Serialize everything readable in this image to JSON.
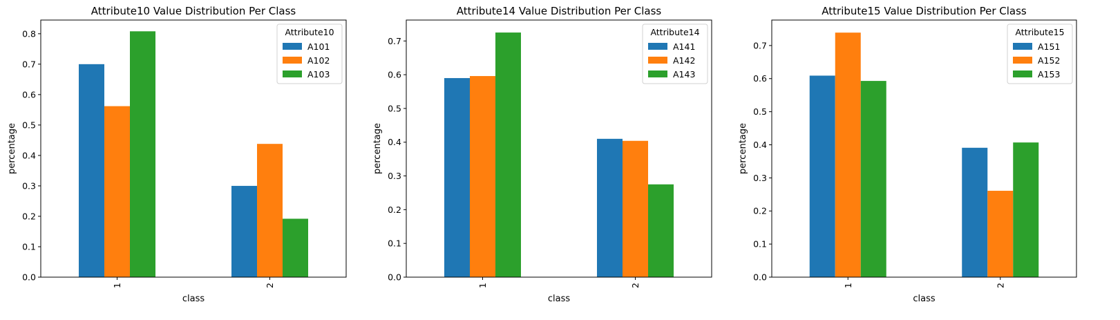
{
  "chart_data": [
    {
      "type": "bar",
      "title": "Attribute10 Value Distribution Per Class",
      "xlabel": "class",
      "ylabel": "percentage",
      "categories": [
        "1",
        "2"
      ],
      "ylim": [
        0,
        0.845
      ],
      "yticks": [
        0.0,
        0.1,
        0.2,
        0.3,
        0.4,
        0.5,
        0.6,
        0.7,
        0.8
      ],
      "grid": false,
      "legend": {
        "title": "Attribute10",
        "placement": "top-right"
      },
      "series": [
        {
          "name": "A101",
          "color": "#1f77b4",
          "values": [
            0.7,
            0.3
          ]
        },
        {
          "name": "A102",
          "color": "#ff7f0e",
          "values": [
            0.562,
            0.438
          ]
        },
        {
          "name": "A103",
          "color": "#2ca02c",
          "values": [
            0.808,
            0.192
          ]
        }
      ]
    },
    {
      "type": "bar",
      "title": "Attribute14 Value Distribution Per Class",
      "xlabel": "class",
      "ylabel": "percentage",
      "categories": [
        "1",
        "2"
      ],
      "ylim": [
        0,
        0.762
      ],
      "yticks": [
        0.0,
        0.1,
        0.2,
        0.3,
        0.4,
        0.5,
        0.6,
        0.7
      ],
      "grid": false,
      "legend": {
        "title": "Attribute14",
        "placement": "top-right"
      },
      "series": [
        {
          "name": "A141",
          "color": "#1f77b4",
          "values": [
            0.59,
            0.41
          ]
        },
        {
          "name": "A142",
          "color": "#ff7f0e",
          "values": [
            0.596,
            0.404
          ]
        },
        {
          "name": "A143",
          "color": "#2ca02c",
          "values": [
            0.725,
            0.275
          ]
        }
      ]
    },
    {
      "type": "bar",
      "title": "Attribute15 Value Distribution Per Class",
      "xlabel": "class",
      "ylabel": "percentage",
      "categories": [
        "1",
        "2"
      ],
      "ylim": [
        0,
        0.777
      ],
      "yticks": [
        0.0,
        0.1,
        0.2,
        0.3,
        0.4,
        0.5,
        0.6,
        0.7
      ],
      "grid": false,
      "legend": {
        "title": "Attribute15",
        "placement": "top-right"
      },
      "series": [
        {
          "name": "A151",
          "color": "#1f77b4",
          "values": [
            0.609,
            0.391
          ]
        },
        {
          "name": "A152",
          "color": "#ff7f0e",
          "values": [
            0.739,
            0.261
          ]
        },
        {
          "name": "A153",
          "color": "#2ca02c",
          "values": [
            0.593,
            0.407
          ]
        }
      ]
    }
  ]
}
